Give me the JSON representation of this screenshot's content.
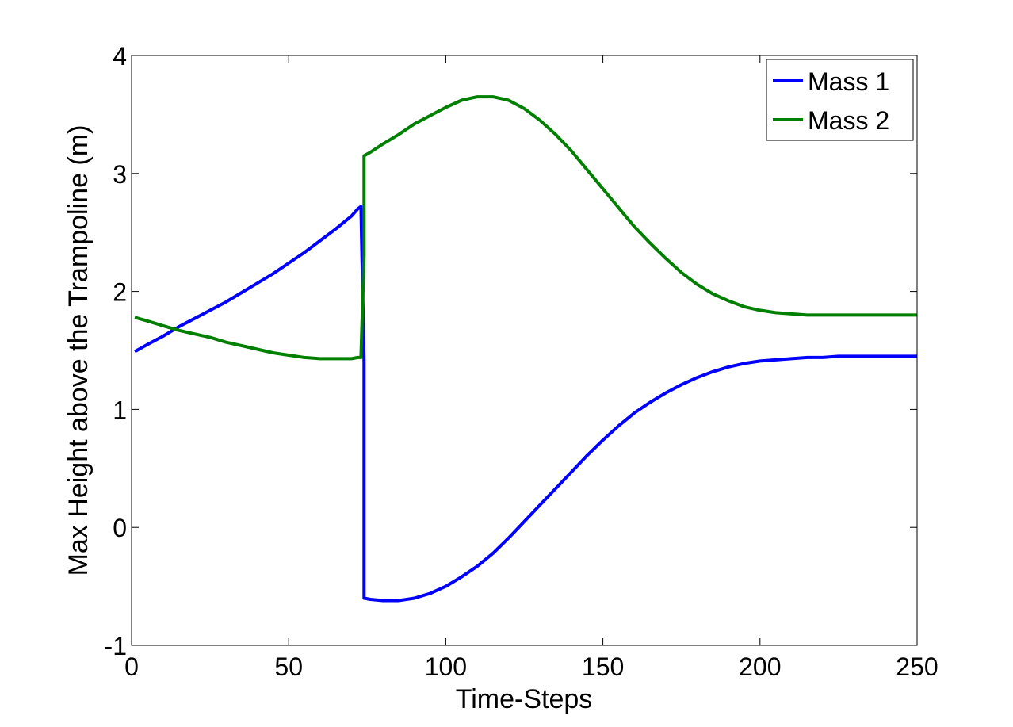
{
  "chart_data": {
    "type": "line",
    "xlabel": "Time-Steps",
    "ylabel": "Max Height above the Trampoline (m)",
    "xlim": [
      0,
      250
    ],
    "ylim": [
      -1,
      4
    ],
    "xticks": [
      0,
      50,
      100,
      150,
      200,
      250
    ],
    "yticks": [
      -1,
      0,
      1,
      2,
      3,
      4
    ],
    "grid": false,
    "legend_position": "top-right",
    "series": [
      {
        "name": "Mass 1",
        "color": "#0000ff",
        "x": [
          1,
          5,
          10,
          15,
          20,
          25,
          30,
          35,
          40,
          45,
          50,
          55,
          60,
          65,
          70,
          72,
          73,
          74,
          74,
          76,
          80,
          85,
          90,
          95,
          100,
          105,
          110,
          115,
          120,
          125,
          130,
          135,
          140,
          145,
          150,
          155,
          160,
          165,
          170,
          175,
          180,
          185,
          190,
          195,
          200,
          205,
          210,
          215,
          220,
          225,
          230,
          235,
          240,
          245,
          250
        ],
        "y": [
          1.49,
          1.55,
          1.62,
          1.7,
          1.77,
          1.84,
          1.91,
          1.99,
          2.07,
          2.15,
          2.24,
          2.33,
          2.43,
          2.53,
          2.64,
          2.7,
          2.72,
          1.4,
          -0.6,
          -0.61,
          -0.62,
          -0.62,
          -0.6,
          -0.56,
          -0.5,
          -0.42,
          -0.33,
          -0.22,
          -0.09,
          0.05,
          0.19,
          0.33,
          0.47,
          0.61,
          0.74,
          0.86,
          0.97,
          1.06,
          1.14,
          1.21,
          1.27,
          1.32,
          1.36,
          1.39,
          1.41,
          1.42,
          1.43,
          1.44,
          1.44,
          1.45,
          1.45,
          1.45,
          1.45,
          1.45,
          1.45
        ]
      },
      {
        "name": "Mass 2",
        "color": "#007f00",
        "x": [
          1,
          5,
          10,
          15,
          20,
          25,
          30,
          35,
          40,
          45,
          50,
          55,
          60,
          65,
          70,
          72,
          73,
          74,
          74,
          76,
          80,
          85,
          90,
          95,
          100,
          105,
          110,
          115,
          120,
          125,
          130,
          135,
          140,
          145,
          150,
          155,
          160,
          165,
          170,
          175,
          180,
          185,
          190,
          195,
          200,
          205,
          210,
          215,
          220,
          225,
          230,
          235,
          240,
          245,
          250
        ],
        "y": [
          1.78,
          1.75,
          1.71,
          1.67,
          1.64,
          1.61,
          1.57,
          1.54,
          1.51,
          1.48,
          1.46,
          1.44,
          1.43,
          1.43,
          1.43,
          1.44,
          1.44,
          2.3,
          3.15,
          3.18,
          3.25,
          3.33,
          3.42,
          3.49,
          3.56,
          3.62,
          3.65,
          3.65,
          3.62,
          3.55,
          3.45,
          3.33,
          3.19,
          3.03,
          2.87,
          2.71,
          2.55,
          2.41,
          2.28,
          2.16,
          2.06,
          1.98,
          1.92,
          1.87,
          1.84,
          1.82,
          1.81,
          1.8,
          1.8,
          1.8,
          1.8,
          1.8,
          1.8,
          1.8,
          1.8
        ]
      }
    ]
  }
}
